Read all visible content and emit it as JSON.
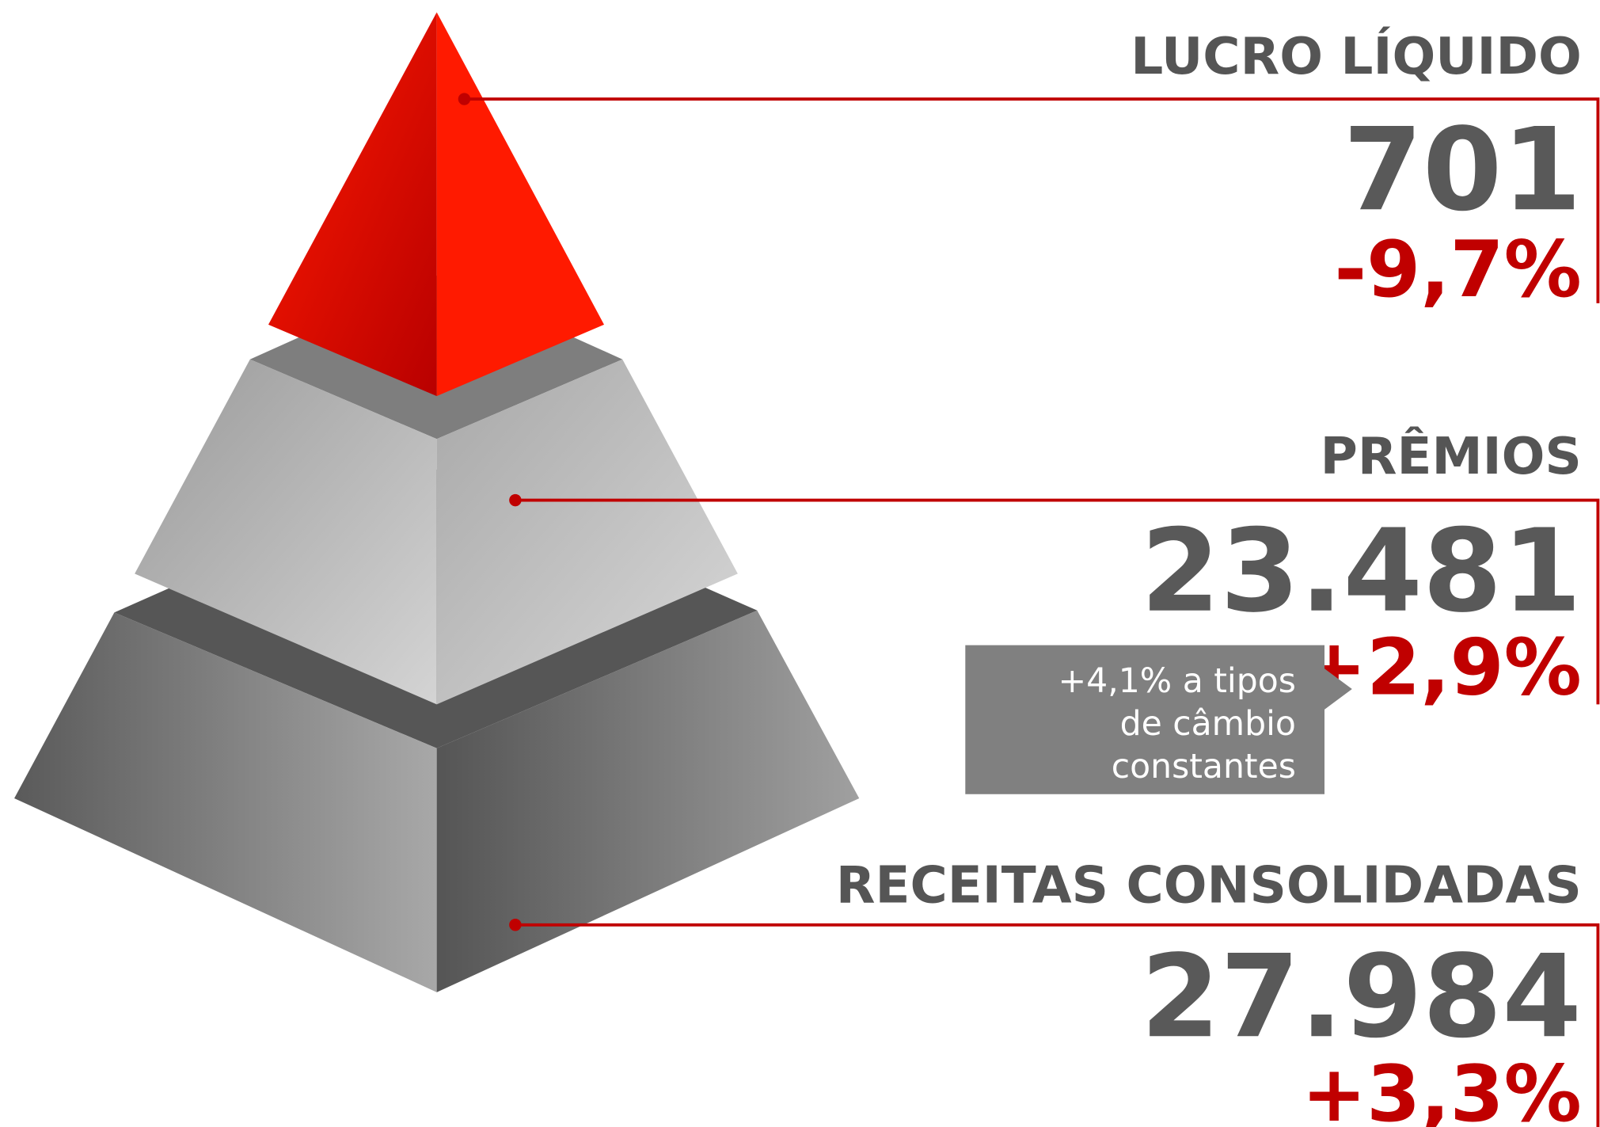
{
  "items": [
    {
      "label": "LUCRO LÍQUIDO",
      "value": "701",
      "change": "-9,7%"
    },
    {
      "label": "PRÊMIOS",
      "value": "23.481",
      "change": "+2,9%",
      "note": [
        "+4,1% a tipos",
        "de câmbio",
        "constantes"
      ]
    },
    {
      "label": "RECEITAS CONSOLIDADAS",
      "value": "27.984",
      "change": "+3,3%"
    }
  ]
}
